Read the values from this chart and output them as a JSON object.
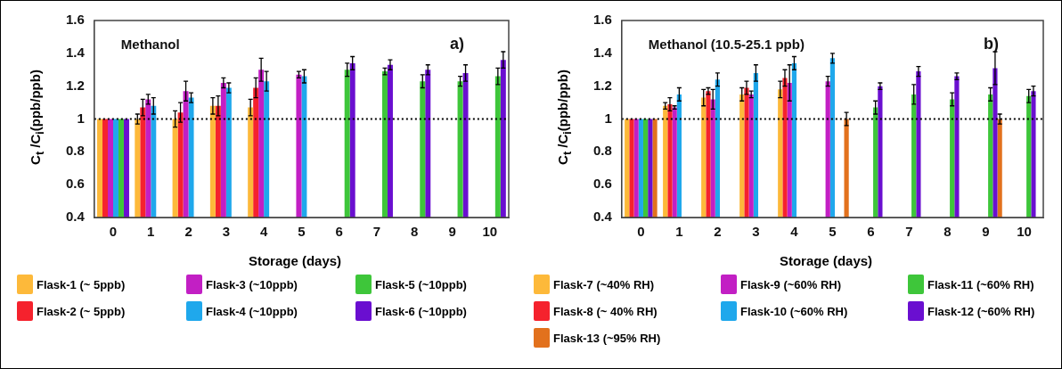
{
  "chart_data": [
    {
      "type": "bar",
      "xlabel": "Storage (days)",
      "ylabel": "C$_{t}$ /C$_{i}$(ppb/ppb)",
      "categories": [
        "0",
        "1",
        "2",
        "3",
        "4",
        "5",
        "6",
        "7",
        "8",
        "9",
        "10"
      ],
      "ylim": [
        0.4,
        1.6
      ],
      "yticks": [
        0.4,
        0.6,
        0.8,
        1,
        1.2,
        1.4,
        1.6
      ],
      "grid": false,
      "legend": "bottom",
      "annotations": [
        "Methanol",
        "a)"
      ],
      "ref_lines": [
        {
          "axis": "y",
          "value": 1,
          "line_style": "dotted",
          "color": "#000000"
        }
      ],
      "series": [
        {
          "name": "Flask-1 (~ 5ppb)",
          "color": "#fdb93a",
          "values": [
            1,
            1.0,
            1.0,
            1.08,
            1.07,
            null,
            null,
            null,
            null,
            null,
            null
          ],
          "errors": [
            null,
            0.03,
            0.05,
            0.05,
            0.05,
            null,
            null,
            null,
            null,
            null,
            null
          ]
        },
        {
          "name": "Flask-2 (~ 5ppb)",
          "color": "#f5222d",
          "values": [
            1,
            1.07,
            1.04,
            1.08,
            1.19,
            null,
            null,
            null,
            null,
            null,
            null
          ],
          "errors": [
            null,
            0.05,
            0.06,
            0.06,
            0.06,
            null,
            null,
            null,
            null,
            null,
            null
          ]
        },
        {
          "name": "Flask-3 (~10ppb)",
          "color": "#c21fc4",
          "values": [
            1,
            1.12,
            1.17,
            1.22,
            1.3,
            1.27,
            null,
            null,
            null,
            null,
            null
          ],
          "errors": [
            null,
            0.03,
            0.06,
            0.03,
            0.07,
            0.02,
            null,
            null,
            null,
            null,
            null
          ]
        },
        {
          "name": "Flask-4 (~10ppb)",
          "color": "#1fa8ec",
          "values": [
            1,
            1.08,
            1.13,
            1.19,
            1.23,
            1.26,
            null,
            null,
            null,
            null,
            null
          ],
          "errors": [
            null,
            0.05,
            0.03,
            0.03,
            0.06,
            0.04,
            null,
            null,
            null,
            null,
            null
          ]
        },
        {
          "name": "Flask-5 (~10ppb)",
          "color": "#3ec63a",
          "values": [
            1,
            null,
            null,
            null,
            null,
            null,
            1.3,
            1.29,
            1.23,
            1.23,
            1.26
          ],
          "errors": [
            null,
            null,
            null,
            null,
            null,
            null,
            0.04,
            0.02,
            0.04,
            0.03,
            0.05
          ]
        },
        {
          "name": "Flask-6 (~10ppb)",
          "color": "#6a0fd0",
          "values": [
            1,
            null,
            null,
            null,
            null,
            null,
            1.34,
            1.33,
            1.3,
            1.28,
            1.36
          ],
          "errors": [
            null,
            null,
            null,
            null,
            null,
            null,
            0.04,
            0.03,
            0.03,
            0.05,
            0.05
          ]
        }
      ]
    },
    {
      "type": "bar",
      "xlabel": "Storage (days)",
      "ylabel": "C$_{t}$ /C$_{i}$(ppb/ppb)",
      "categories": [
        "0",
        "1",
        "2",
        "3",
        "4",
        "5",
        "6",
        "7",
        "8",
        "9",
        "10"
      ],
      "ylim": [
        0.4,
        1.6
      ],
      "yticks": [
        0.4,
        0.6,
        0.8,
        1,
        1.2,
        1.4,
        1.6
      ],
      "grid": false,
      "legend": "bottom",
      "annotations": [
        "Methanol (10.5-25.1 ppb)",
        "b)"
      ],
      "ref_lines": [
        {
          "axis": "y",
          "value": 1,
          "line_style": "dotted",
          "color": "#000000"
        }
      ],
      "series": [
        {
          "name": "Flask-7 (~40% RH)",
          "color": "#fdb93a",
          "values": [
            1,
            1.08,
            1.13,
            1.15,
            1.18,
            null,
            null,
            null,
            null,
            null,
            null
          ],
          "errors": [
            null,
            0.02,
            0.05,
            0.04,
            0.05,
            null,
            null,
            null,
            null,
            null,
            null
          ]
        },
        {
          "name": "Flask-8 (~ 40% RH)",
          "color": "#f5222d",
          "values": [
            1,
            1.09,
            1.17,
            1.19,
            1.25,
            null,
            null,
            null,
            null,
            null,
            null
          ],
          "errors": [
            null,
            0.04,
            0.02,
            0.04,
            0.05,
            null,
            null,
            null,
            null,
            null,
            null
          ]
        },
        {
          "name": "Flask-9 (~60% RH)",
          "color": "#c21fc4",
          "values": [
            1,
            1.07,
            1.12,
            1.15,
            1.22,
            1.23,
            null,
            null,
            null,
            null,
            null
          ],
          "errors": [
            null,
            0.01,
            0.06,
            0.02,
            0.11,
            0.03,
            null,
            null,
            null,
            null,
            null
          ]
        },
        {
          "name": "Flask-10 (~60% RH)",
          "color": "#1fa8ec",
          "values": [
            1,
            1.15,
            1.24,
            1.28,
            1.34,
            1.37,
            null,
            null,
            null,
            null,
            null
          ],
          "errors": [
            null,
            0.04,
            0.04,
            0.05,
            0.04,
            0.03,
            null,
            null,
            null,
            null,
            null
          ]
        },
        {
          "name": "Flask-11 (~60% RH)",
          "color": "#3ec63a",
          "values": [
            1,
            null,
            null,
            null,
            null,
            null,
            1.07,
            1.15,
            1.12,
            1.15,
            1.14
          ],
          "errors": [
            null,
            null,
            null,
            null,
            null,
            null,
            0.04,
            0.06,
            0.04,
            0.04,
            0.04
          ]
        },
        {
          "name": "Flask-12 (~60% RH)",
          "color": "#6a0fd0",
          "values": [
            1,
            null,
            null,
            null,
            null,
            null,
            1.2,
            1.29,
            1.26,
            1.31,
            1.17
          ],
          "errors": [
            null,
            null,
            null,
            null,
            null,
            null,
            0.02,
            0.03,
            0.02,
            0.1,
            0.03
          ]
        },
        {
          "name": "Flask-13 (~95% RH)",
          "color": "#e2711d",
          "values": [
            1,
            null,
            null,
            null,
            null,
            1.0,
            null,
            null,
            null,
            1.0,
            null
          ],
          "errors": [
            null,
            null,
            null,
            null,
            null,
            0.04,
            null,
            null,
            null,
            0.03,
            null
          ]
        }
      ]
    }
  ]
}
